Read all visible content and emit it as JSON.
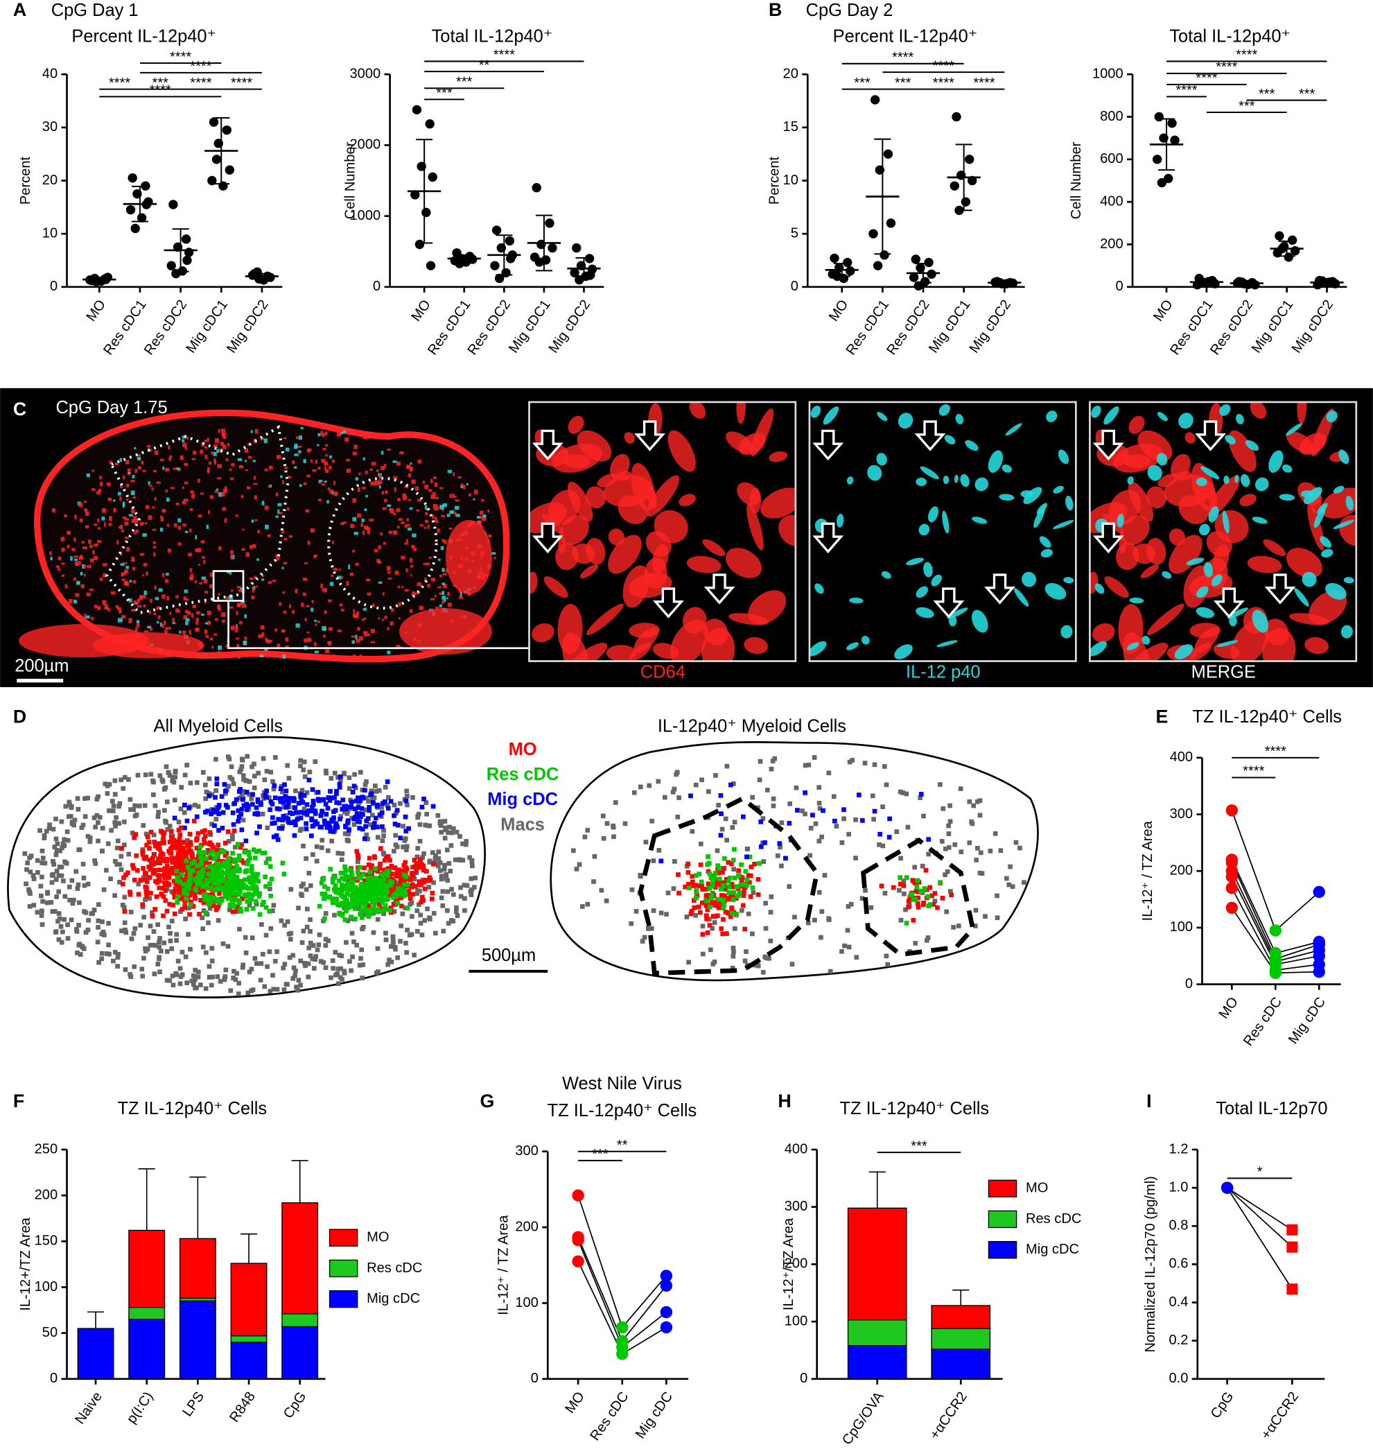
{
  "panels": [
    {
      "letter": "A",
      "caption": "CpG Day 1"
    },
    {
      "letter": "B",
      "caption": "CpG Day 2"
    },
    {
      "letter": "C",
      "caption": "CpG Day 1.75"
    },
    {
      "letter": "D"
    },
    {
      "letter": "E"
    },
    {
      "letter": "F"
    },
    {
      "letter": "G"
    },
    {
      "letter": "H"
    },
    {
      "letter": "I"
    }
  ],
  "micrograph": {
    "scale_bar": "200µm",
    "channels": [
      {
        "name": "CD64",
        "color": "#ff2424"
      },
      {
        "name": "IL-12 p40",
        "color": "#25d8dc"
      },
      {
        "name": "MERGE",
        "color": "#ffffff"
      }
    ]
  },
  "maps": {
    "titles": [
      "All Myeloid Cells",
      "IL-12p40⁺ Myeloid Cells"
    ],
    "legend": [
      {
        "name": "MO",
        "color": "#ff0000"
      },
      {
        "name": "Res cDC",
        "color": "#00c800"
      },
      {
        "name": "Mig cDC",
        "color": "#0000ff"
      },
      {
        "name": "Macs",
        "color": "#666666"
      }
    ],
    "scale_bar": "500µm"
  },
  "chart_data": [
    {
      "type": "dot_plot",
      "title": "Percent IL-12p40⁺",
      "y_label": "Percent",
      "categories": [
        "MO",
        "Res cDC1",
        "Res cDC2",
        "Mig cDC1",
        "Mig cDC2"
      ],
      "color": "#000000",
      "values": [
        [
          1.2,
          1.5,
          1.0,
          1.8,
          1.3,
          1.1,
          1.6,
          1.4
        ],
        [
          20.5,
          19,
          17.5,
          16,
          14.5,
          13,
          11,
          15.5
        ],
        [
          15.5,
          9,
          7.5,
          6.5,
          4,
          3,
          2.5,
          5
        ],
        [
          31,
          29.5,
          27,
          22,
          20,
          19,
          24
        ],
        [
          2.5,
          2,
          1.5,
          1.8,
          2.2,
          1.3,
          2.8,
          1.9
        ]
      ],
      "means": [
        1.4,
        15.6,
        6.9,
        25.6,
        2.0
      ],
      "sds": [
        0.3,
        3.3,
        4.0,
        6.2,
        0.5
      ],
      "ylim": [
        0,
        40
      ],
      "yticks": [
        0,
        10,
        20,
        30,
        40
      ],
      "comparisons": [
        {
          "between": [
            1,
            3
          ],
          "y": 42.1,
          "label": "****"
        },
        {
          "between": [
            1,
            4
          ],
          "y": 40.3,
          "label": "****"
        },
        {
          "between": [
            0,
            1
          ],
          "y": 37.2,
          "label": "****"
        },
        {
          "between": [
            1,
            2
          ],
          "y": 37.2,
          "label": "***"
        },
        {
          "between": [
            2,
            3
          ],
          "y": 37.2,
          "label": "****"
        },
        {
          "between": [
            3,
            4
          ],
          "y": 37.2,
          "label": "****"
        },
        {
          "between": [
            0,
            3
          ],
          "y": 35.8,
          "label": "****"
        }
      ]
    },
    {
      "type": "dot_plot",
      "title": "Total IL-12p40⁺",
      "y_label": "Cell Number",
      "categories": [
        "MO",
        "Res cDC1",
        "Res cDC2",
        "Mig cDC1",
        "Mig cDC2"
      ],
      "color": "#000000",
      "values": [
        [
          2500,
          2300,
          1700,
          1550,
          1300,
          1050,
          600,
          300
        ],
        [
          480,
          430,
          400,
          390,
          370,
          350,
          330,
          410
        ],
        [
          800,
          650,
          550,
          450,
          300,
          200,
          120,
          400
        ],
        [
          1400,
          900,
          600,
          550,
          420,
          380,
          350
        ],
        [
          550,
          400,
          300,
          250,
          200,
          150,
          100,
          170
        ]
      ],
      "means": [
        1350,
        400,
        450,
        620,
        260
      ],
      "sds": [
        730,
        50,
        280,
        390,
        150
      ],
      "ylim": [
        0,
        3000
      ],
      "yticks": [
        0,
        1000,
        2000,
        3000
      ],
      "comparisons": [
        {
          "between": [
            0,
            4
          ],
          "y": 3183,
          "label": "****"
        },
        {
          "between": [
            0,
            3
          ],
          "y": 3039,
          "label": "**"
        },
        {
          "between": [
            0,
            2
          ],
          "y": 2803,
          "label": "***"
        },
        {
          "between": [
            0,
            1
          ],
          "y": 2646,
          "label": "***"
        }
      ]
    },
    {
      "type": "dot_plot",
      "title": "Percent IL-12p40⁺",
      "y_label": "Percent",
      "categories": [
        "MO",
        "Res cDC1",
        "Res cDC2",
        "Mig cDC1",
        "Mig cDC2"
      ],
      "color": "#000000",
      "values": [
        [
          2.7,
          2.3,
          1.8,
          1.5,
          1.2,
          0.8,
          1.0
        ],
        [
          17.6,
          12.5,
          11,
          6,
          5,
          3,
          2
        ],
        [
          2.6,
          2.3,
          1.8,
          1.2,
          0.9,
          0.5,
          0.1
        ],
        [
          16,
          12,
          10.5,
          10,
          9.5,
          8,
          7.2
        ],
        [
          0.5,
          0.4,
          0.3,
          0.35,
          0.45,
          0.3,
          0.4
        ]
      ],
      "means": [
        1.6,
        8.5,
        1.3,
        10.3,
        0.4
      ],
      "sds": [
        0.6,
        5.4,
        0.9,
        3.1,
        0.1
      ],
      "ylim": [
        0,
        20
      ],
      "yticks": [
        0,
        5,
        10,
        15,
        20
      ],
      "comparisons": [
        {
          "between": [
            0,
            3
          ],
          "y": 21.0,
          "label": "****"
        },
        {
          "between": [
            1,
            4
          ],
          "y": 20.2,
          "label": "****"
        },
        {
          "between": [
            0,
            1
          ],
          "y": 18.6,
          "label": "***"
        },
        {
          "between": [
            1,
            2
          ],
          "y": 18.6,
          "label": "***"
        },
        {
          "between": [
            2,
            3
          ],
          "y": 18.6,
          "label": "****"
        },
        {
          "between": [
            3,
            4
          ],
          "y": 18.6,
          "label": "****"
        }
      ]
    },
    {
      "type": "dot_plot",
      "title": "Total IL-12p40⁺",
      "y_label": "Cell Number",
      "categories": [
        "MO",
        "Res cDC1",
        "Res cDC2",
        "Mig cDC1",
        "Mig cDC2"
      ],
      "color": "#000000",
      "values": [
        [
          800,
          770,
          700,
          690,
          600,
          510,
          490
        ],
        [
          40,
          30,
          20,
          15,
          10,
          25,
          20
        ],
        [
          25,
          20,
          15,
          10,
          18,
          12,
          22
        ],
        [
          240,
          220,
          190,
          170,
          160,
          140,
          180
        ],
        [
          30,
          25,
          20,
          15,
          10,
          22,
          28
        ]
      ],
      "means": [
        670,
        23,
        17,
        180,
        21
      ],
      "sds": [
        120,
        10,
        5,
        35,
        7
      ],
      "ylim": [
        0,
        1000
      ],
      "yticks": [
        0,
        200,
        400,
        600,
        800,
        1000
      ],
      "comparisons": [
        {
          "between": [
            0,
            4
          ],
          "y": 1061,
          "label": "****"
        },
        {
          "between": [
            0,
            3
          ],
          "y": 1004,
          "label": "****"
        },
        {
          "between": [
            0,
            2
          ],
          "y": 952,
          "label": "****"
        },
        {
          "between": [
            0,
            1
          ],
          "y": 895,
          "label": "****"
        },
        {
          "between": [
            2,
            3
          ],
          "y": 878,
          "label": "***"
        },
        {
          "between": [
            3,
            4
          ],
          "y": 878,
          "label": "***"
        },
        {
          "between": [
            1,
            3
          ],
          "y": 821,
          "label": "***"
        }
      ]
    },
    {
      "type": "paired",
      "title": "TZ IL-12p40⁺ Cells",
      "y_label": "IL-12⁺ / TZ Area",
      "categories": [
        "MO",
        "Res cDC",
        "Mig cDC"
      ],
      "colors": [
        "#ff0000",
        "#00c800",
        "#0000ff"
      ],
      "values": [
        [
          307,
          220,
          215,
          200,
          190,
          170,
          135
        ],
        [
          95,
          55,
          45,
          40,
          35,
          25,
          20
        ],
        [
          163,
          75,
          70,
          60,
          50,
          35,
          22
        ]
      ],
      "ylim": [
        0,
        400
      ],
      "yticks": [
        0,
        100,
        200,
        300,
        400
      ],
      "comparisons": [
        {
          "between": [
            0,
            2
          ],
          "y": 400,
          "label": "****"
        },
        {
          "between": [
            0,
            1
          ],
          "y": 365,
          "label": "****"
        }
      ]
    },
    {
      "type": "stacked_bar",
      "title": "TZ IL-12p40⁺ Cells",
      "y_label": "IL-12+/TZ Area",
      "categories": [
        "Naive",
        "p(I:C)",
        "LPS",
        "R848",
        "CpG"
      ],
      "series": [
        {
          "name": "MO",
          "color": "#ff0000",
          "values": [
            0,
            84,
            65,
            79,
            121
          ],
          "errors": [
            null,
            67,
            67,
            32,
            46
          ]
        },
        {
          "name": "Res cDC",
          "color": "#1ec81e",
          "values": [
            0,
            13,
            3,
            7,
            14
          ],
          "errors": [
            null,
            16,
            5,
            14,
            9
          ]
        },
        {
          "name": "Mig cDC",
          "color": "#0000ff",
          "values": [
            55,
            65,
            85,
            40,
            57
          ],
          "errors": [
            18,
            null,
            null,
            null,
            null
          ]
        }
      ],
      "ylim": [
        0,
        250
      ],
      "yticks": [
        0,
        50,
        100,
        150,
        200,
        250
      ],
      "legend": true
    },
    {
      "type": "paired",
      "title": "West Nile  Virus",
      "subtitle": "TZ IL-12p40⁺ Cells",
      "y_label": "IL-12⁺ / TZ Area",
      "categories": [
        "MO",
        "Res cDC",
        "Mig cDC"
      ],
      "colors": [
        "#ff0000",
        "#00c800",
        "#0000ff"
      ],
      "values": [
        [
          242,
          187,
          183,
          155
        ],
        [
          68,
          50,
          42,
          33
        ],
        [
          136,
          123,
          88,
          68
        ]
      ],
      "ylim": [
        0,
        300
      ],
      "yticks": [
        0,
        100,
        200,
        300
      ],
      "comparisons": [
        {
          "between": [
            0,
            2
          ],
          "y": 300,
          "label": "**"
        },
        {
          "between": [
            0,
            1
          ],
          "y": 288,
          "label": "***"
        }
      ]
    },
    {
      "type": "stacked_bar",
      "title": "TZ IL-12p40⁺ Cells",
      "y_label": "IL-12⁺/TZ Area",
      "categories": [
        "CpG/OVA",
        "+αCCR2"
      ],
      "series": [
        {
          "name": "MO",
          "color": "#ff0000",
          "values": [
            195,
            40
          ],
          "errors": [
            63,
            27
          ]
        },
        {
          "name": "Res cDC",
          "color": "#1ec81e",
          "values": [
            45,
            36
          ],
          "errors": [
            19,
            12
          ]
        },
        {
          "name": "Mig cDC",
          "color": "#0000ff",
          "values": [
            58,
            52
          ],
          "errors": [
            null,
            null
          ]
        }
      ],
      "ylim": [
        0,
        400
      ],
      "yticks": [
        0,
        100,
        200,
        300,
        400
      ],
      "legend": true,
      "comparisons": [
        {
          "between": [
            0,
            1
          ],
          "y": 395,
          "label": "***"
        }
      ]
    },
    {
      "type": "paired",
      "title": "Total IL-12p70",
      "y_label": "Normalized IL-12p70 (pg/ml)",
      "categories": [
        "CpG",
        "+αCCR2"
      ],
      "colors": [
        "#0000ff",
        "#ff0000"
      ],
      "markers": [
        "circle",
        "square"
      ],
      "values": [
        [
          1,
          1,
          1
        ],
        [
          0.78,
          0.69,
          0.47
        ]
      ],
      "ylim": [
        0,
        1.2
      ],
      "yticks": [
        {
          "value": 0,
          "label": "0.0"
        },
        0.2,
        0.4,
        0.6,
        0.8,
        {
          "value": 1,
          "label": "1.0"
        },
        1.2
      ],
      "comparisons": [
        {
          "between": [
            0,
            1
          ],
          "y": 1.05,
          "label": "*"
        }
      ]
    }
  ]
}
